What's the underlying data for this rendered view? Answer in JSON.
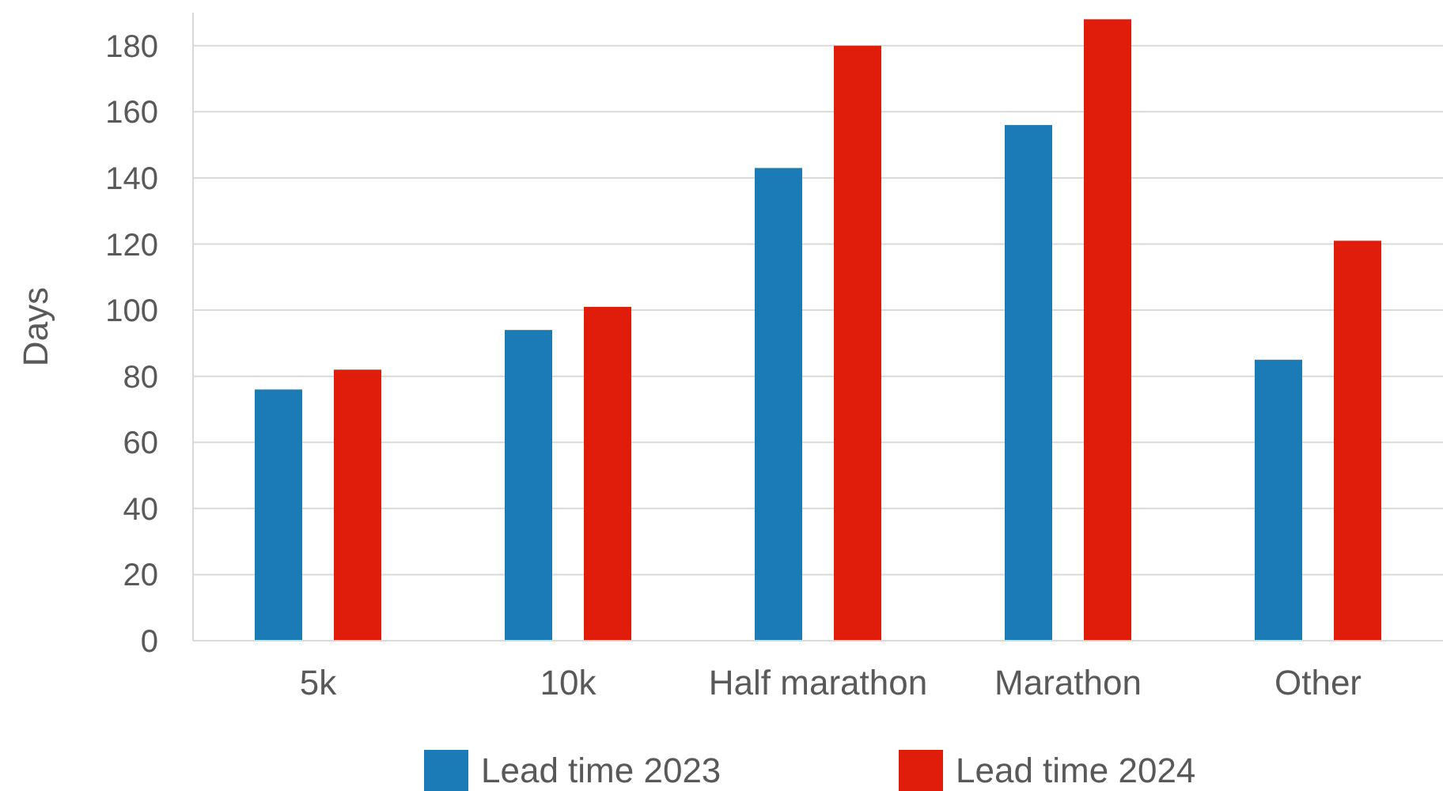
{
  "chart_data": {
    "type": "bar",
    "ylabel": "Days",
    "categories": [
      "5k",
      "10k",
      "Half marathon",
      "Marathon",
      "Other"
    ],
    "series": [
      {
        "name": "Lead time 2023",
        "color": "#1b7bb6",
        "values": [
          76,
          94,
          143,
          156,
          85
        ]
      },
      {
        "name": "Lead time 2024",
        "color": "#e01c0a",
        "values": [
          82,
          101,
          180,
          188,
          121
        ]
      }
    ],
    "ylim": [
      0,
      190
    ],
    "yticks": [
      0,
      20,
      40,
      60,
      80,
      100,
      120,
      140,
      160,
      180
    ],
    "grid": "y",
    "legend": "bottom"
  }
}
